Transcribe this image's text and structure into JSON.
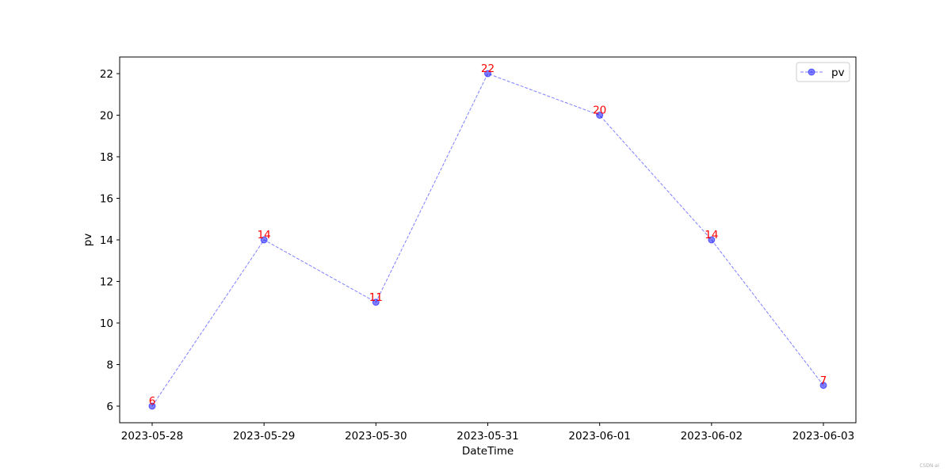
{
  "chart_data": {
    "type": "line",
    "x": [
      "2023-05-28",
      "2023-05-29",
      "2023-05-30",
      "2023-05-31",
      "2023-06-01",
      "2023-06-02",
      "2023-06-03"
    ],
    "series": [
      {
        "name": "pv",
        "values": [
          6,
          14,
          11,
          22,
          20,
          14,
          7
        ]
      }
    ],
    "xlabel": "DateTime",
    "ylabel": "pv",
    "ylim": [
      5.2,
      22.8
    ],
    "yticks": [
      6,
      8,
      10,
      12,
      14,
      16,
      18,
      20,
      22
    ],
    "grid": false,
    "legend_position": "top-right",
    "line_style": "dashed",
    "marker": "circle",
    "line_color": "#0000ff",
    "data_label_color": "#ff0000"
  },
  "watermark": "CSDN-ai"
}
